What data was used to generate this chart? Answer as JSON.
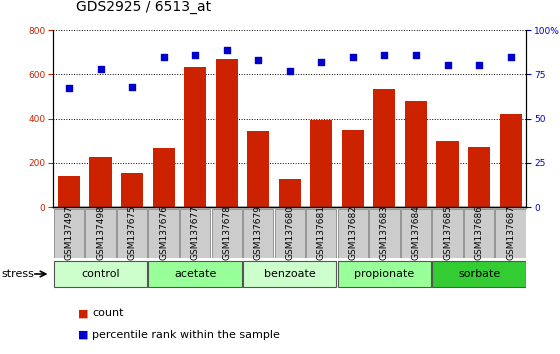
{
  "title": "GDS2925 / 6513_at",
  "samples": [
    "GSM137497",
    "GSM137498",
    "GSM137675",
    "GSM137676",
    "GSM137677",
    "GSM137678",
    "GSM137679",
    "GSM137680",
    "GSM137681",
    "GSM137682",
    "GSM137683",
    "GSM137684",
    "GSM137685",
    "GSM137686",
    "GSM137687"
  ],
  "counts": [
    140,
    225,
    155,
    265,
    635,
    670,
    345,
    125,
    395,
    350,
    535,
    480,
    300,
    270,
    420
  ],
  "percentiles": [
    67,
    78,
    68,
    85,
    86,
    89,
    83,
    77,
    82,
    85,
    86,
    86,
    80,
    80,
    85
  ],
  "groups": [
    {
      "name": "control",
      "start": 0,
      "end": 3,
      "color": "#ccffcc"
    },
    {
      "name": "acetate",
      "start": 3,
      "end": 6,
      "color": "#99ff99"
    },
    {
      "name": "benzoate",
      "start": 6,
      "end": 9,
      "color": "#ccffcc"
    },
    {
      "name": "propionate",
      "start": 9,
      "end": 12,
      "color": "#99ff99"
    },
    {
      "name": "sorbate",
      "start": 12,
      "end": 15,
      "color": "#33cc33"
    }
  ],
  "ylim_left": [
    0,
    800
  ],
  "ylim_right": [
    0,
    100
  ],
  "yticks_left": [
    0,
    200,
    400,
    600,
    800
  ],
  "yticks_right": [
    0,
    25,
    50,
    75,
    100
  ],
  "bar_color": "#cc2200",
  "dot_color": "#0000cc",
  "background_color": "#e8e8e8",
  "tickbox_color": "#cccccc",
  "stress_label": "stress",
  "legend_count": "count",
  "legend_pct": "percentile rank within the sample",
  "title_fontsize": 10,
  "tick_fontsize": 6.5,
  "label_fontsize": 8,
  "group_fontsize": 8
}
